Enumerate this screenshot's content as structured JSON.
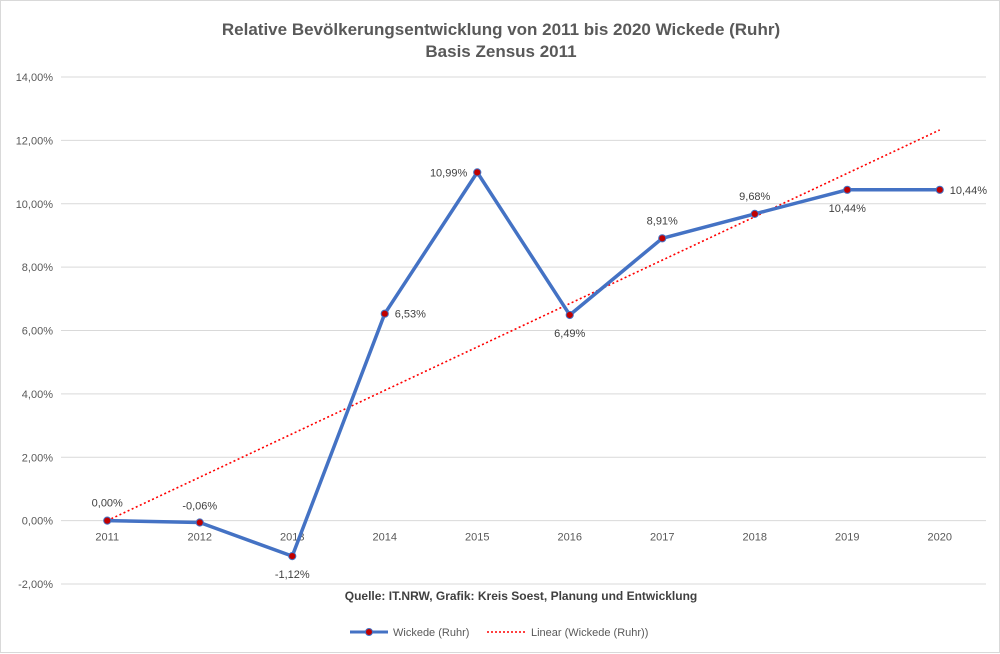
{
  "chart_data": {
    "type": "line",
    "title": "Relative Bevölkerungsentwicklung von 2011 bis 2020 Wickede (Ruhr)",
    "subtitle": "Basis Zensus 2011",
    "source_note": "Quelle: IT.NRW, Grafik: Kreis Soest, Planung und Entwicklung",
    "categories": [
      "2011",
      "2012",
      "2013",
      "2014",
      "2015",
      "2016",
      "2017",
      "2018",
      "2019",
      "2020"
    ],
    "series": [
      {
        "name": "Wickede (Ruhr)",
        "values": [
          0.0,
          -0.06,
          -1.12,
          6.53,
          10.99,
          6.49,
          8.91,
          9.68,
          10.44,
          10.44
        ],
        "labels": [
          "0,00%",
          "-0,06%",
          "-1,12%",
          "6,53%",
          "10,99%",
          "6,49%",
          "8,91%",
          "9,68%",
          "10,44%",
          "10,44%"
        ],
        "color": "#4472c4",
        "marker_color": "#c00000"
      }
    ],
    "trendline": {
      "name": "Linear (Wickede (Ruhr))",
      "type": "linear",
      "start": 0.0,
      "end": 12.33,
      "color": "#ff0000"
    },
    "ylim": [
      -2,
      14
    ],
    "yticks": [
      -2,
      0,
      2,
      4,
      6,
      8,
      10,
      12,
      14
    ],
    "ytick_labels": [
      "-2,00%",
      "0,00%",
      "2,00%",
      "4,00%",
      "6,00%",
      "8,00%",
      "10,00%",
      "12,00%",
      "14,00%"
    ],
    "grid": true,
    "legend_position": "bottom"
  }
}
